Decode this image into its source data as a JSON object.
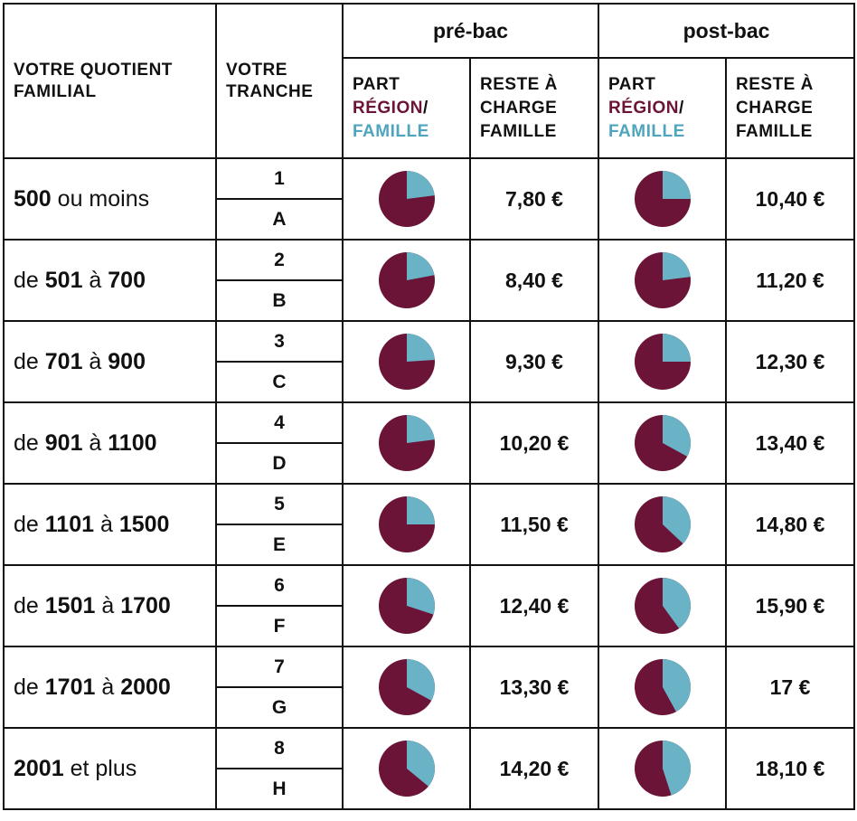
{
  "header": {
    "quotient": [
      "VOTRE QUOTIENT",
      "FAMILIAL"
    ],
    "tranche": [
      "VOTRE",
      "TRANCHE"
    ],
    "groups": [
      "pré-bac",
      "post-bac"
    ],
    "part_prefix": "PART",
    "part_region": "RÉGION",
    "part_slash": "/",
    "part_famille": "FAMILLE",
    "reste": [
      "RESTE À",
      "CHARGE",
      "FAMILLE"
    ]
  },
  "colors": {
    "region": "#6b1438",
    "famille": "#6ab2c6"
  },
  "rows": [
    {
      "qf_pre": "",
      "qf_a": "500",
      "qf_mid": " ou moins",
      "qf_b": "",
      "num": "1",
      "letter": "A",
      "pre_famille_fraction": 0.23,
      "pre_reste": "7,80 €",
      "post_famille_fraction": 0.25,
      "post_reste": "10,40 €"
    },
    {
      "qf_pre": "de ",
      "qf_a": "501",
      "qf_mid": " à ",
      "qf_b": "700",
      "num": "2",
      "letter": "B",
      "pre_famille_fraction": 0.22,
      "pre_reste": "8,40 €",
      "post_famille_fraction": 0.23,
      "post_reste": "11,20 €"
    },
    {
      "qf_pre": "de ",
      "qf_a": "701",
      "qf_mid": " à ",
      "qf_b": "900",
      "num": "3",
      "letter": "C",
      "pre_famille_fraction": 0.24,
      "pre_reste": "9,30 €",
      "post_famille_fraction": 0.25,
      "post_reste": "12,30 €"
    },
    {
      "qf_pre": "de ",
      "qf_a": "901",
      "qf_mid": " à ",
      "qf_b": "1100",
      "num": "4",
      "letter": "D",
      "pre_famille_fraction": 0.23,
      "pre_reste": "10,20 €",
      "post_famille_fraction": 0.33,
      "post_reste": "13,40 €"
    },
    {
      "qf_pre": "de ",
      "qf_a": "1101",
      "qf_mid": " à ",
      "qf_b": "1500",
      "num": "5",
      "letter": "E",
      "pre_famille_fraction": 0.25,
      "pre_reste": "11,50 €",
      "post_famille_fraction": 0.37,
      "post_reste": "14,80 €"
    },
    {
      "qf_pre": "de ",
      "qf_a": "1501",
      "qf_mid": " à ",
      "qf_b": "1700",
      "num": "6",
      "letter": "F",
      "pre_famille_fraction": 0.3,
      "pre_reste": "12,40 €",
      "post_famille_fraction": 0.4,
      "post_reste": "15,90 €"
    },
    {
      "qf_pre": "de ",
      "qf_a": "1701",
      "qf_mid": " à ",
      "qf_b": "2000",
      "num": "7",
      "letter": "G",
      "pre_famille_fraction": 0.33,
      "pre_reste": "13,30 €",
      "post_famille_fraction": 0.42,
      "post_reste": "17 €"
    },
    {
      "qf_pre": "",
      "qf_a": "2001",
      "qf_mid": " et plus",
      "qf_b": "",
      "num": "8",
      "letter": "H",
      "pre_famille_fraction": 0.36,
      "pre_reste": "14,20 €",
      "post_famille_fraction": 0.45,
      "post_reste": "18,10 €"
    }
  ]
}
